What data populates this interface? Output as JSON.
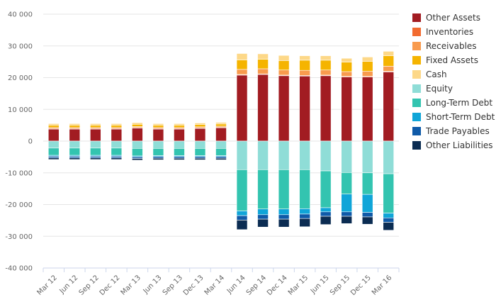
{
  "chart_data": {
    "type": "bar",
    "stacked": true,
    "categories": [
      "Mar 12",
      "Jun 12",
      "Sep 12",
      "Dec 12",
      "Mar 13",
      "Jun 13",
      "Sep 13",
      "Dec 13",
      "Mar 14",
      "Jun 14",
      "Sep 14",
      "Dec 14",
      "Mar 15",
      "Jun 15",
      "Sep 15",
      "Dec 15",
      "Mar 16"
    ],
    "ylim": [
      -40000,
      40000
    ],
    "yticks": [
      40000,
      30000,
      20000,
      10000,
      0,
      -10000,
      -20000,
      -30000,
      -40000
    ],
    "ytick_labels": [
      "40 000",
      "30 000",
      "20 000",
      "10 000",
      "0",
      "-10 000",
      "-20 000",
      "-30 000",
      "-40 000"
    ],
    "grid": true,
    "legend_position": "right",
    "series": [
      {
        "name": "Other Assets",
        "color": "#A21C22",
        "values": [
          3800,
          3800,
          3800,
          3800,
          4100,
          3800,
          3800,
          4000,
          4200,
          20800,
          21000,
          20600,
          20500,
          20600,
          20200,
          20200,
          21800
        ]
      },
      {
        "name": "Inventories",
        "color": "#F26B30",
        "values": [
          100,
          100,
          100,
          100,
          100,
          100,
          100,
          100,
          100,
          200,
          200,
          200,
          200,
          200,
          200,
          200,
          200
        ]
      },
      {
        "name": "Receivables",
        "color": "#F89B4E",
        "values": [
          400,
          400,
          400,
          400,
          400,
          400,
          400,
          400,
          400,
          1600,
          1600,
          1600,
          1600,
          1600,
          1500,
          1600,
          1600
        ]
      },
      {
        "name": "Fixed Assets",
        "color": "#F5B400",
        "values": [
          700,
          700,
          700,
          700,
          700,
          700,
          700,
          700,
          700,
          3000,
          3000,
          3000,
          3200,
          3100,
          3000,
          3100,
          3300
        ]
      },
      {
        "name": "Cash",
        "color": "#FDD888",
        "values": [
          500,
          500,
          500,
          500,
          500,
          500,
          500,
          500,
          500,
          2000,
          1700,
          1600,
          1400,
          1400,
          1200,
          1400,
          1400
        ]
      },
      {
        "name": "Equity",
        "color": "#8FDDD7",
        "values": [
          -2200,
          -2200,
          -2200,
          -2200,
          -2300,
          -2300,
          -2300,
          -2300,
          -2300,
          -9000,
          -9000,
          -9000,
          -9000,
          -9400,
          -9900,
          -10000,
          -10300
        ]
      },
      {
        "name": "Long-Term Debt",
        "color": "#33C4B0",
        "values": [
          -2300,
          -2300,
          -2300,
          -2300,
          -2400,
          -2300,
          -2300,
          -2300,
          -2300,
          -13000,
          -12400,
          -12400,
          -12300,
          -11600,
          -6800,
          -6800,
          -12400
        ]
      },
      {
        "name": "Short-Term Debt",
        "color": "#10A5D8",
        "values": [
          -300,
          -300,
          -300,
          -300,
          -300,
          -300,
          -300,
          -300,
          -300,
          -1500,
          -1800,
          -1800,
          -1700,
          -1300,
          -5600,
          -5700,
          -1500
        ]
      },
      {
        "name": "Trade Payables",
        "color": "#0F5AA8",
        "values": [
          -500,
          -500,
          -500,
          -500,
          -500,
          -500,
          -500,
          -500,
          -500,
          -1400,
          -1400,
          -1400,
          -1400,
          -1400,
          -1400,
          -1400,
          -1400
        ]
      },
      {
        "name": "Other Liabilities",
        "color": "#0B2C52",
        "values": [
          -500,
          -500,
          -500,
          -500,
          -500,
          -500,
          -500,
          -500,
          -500,
          -3000,
          -2500,
          -2500,
          -2600,
          -2600,
          -2300,
          -2300,
          -2500
        ]
      }
    ]
  }
}
